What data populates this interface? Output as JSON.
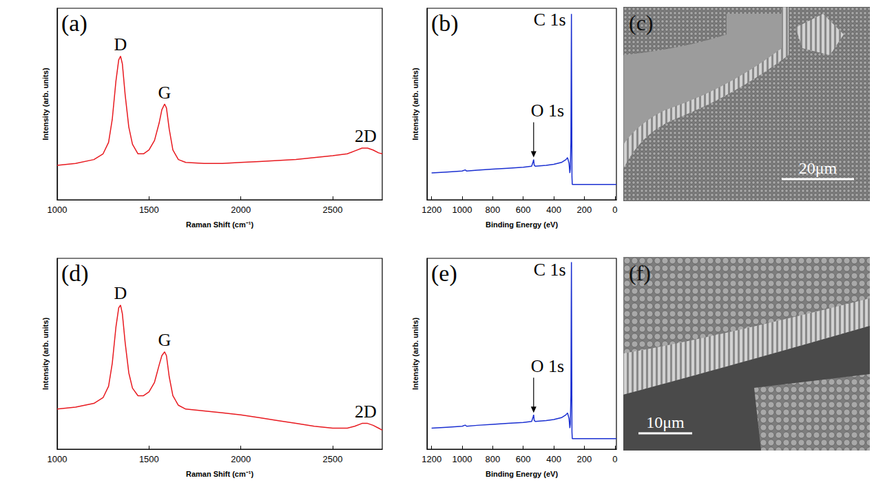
{
  "chart_data": [
    {
      "type": "line",
      "panel": "(a)",
      "x_label": "Raman Shift (cm⁻¹)",
      "y_label": "Intensity (arb. units)",
      "xlim": [
        1000,
        2770
      ],
      "xticks": [
        1000,
        1500,
        2000,
        2500
      ],
      "ylim": [
        0,
        100
      ],
      "tick_labels": "x",
      "color": "#e8191f",
      "x": [
        1000,
        1100,
        1200,
        1250,
        1280,
        1300,
        1320,
        1335,
        1345,
        1355,
        1370,
        1390,
        1410,
        1440,
        1470,
        1500,
        1530,
        1555,
        1570,
        1585,
        1595,
        1610,
        1630,
        1660,
        1700,
        1800,
        1900,
        2000,
        2100,
        2200,
        2300,
        2400,
        2500,
        2580,
        2620,
        2660,
        2690,
        2720,
        2750,
        2770
      ],
      "values": [
        18,
        19,
        21,
        24,
        30,
        42,
        62,
        73,
        75,
        71,
        55,
        38,
        29,
        24,
        24,
        26,
        31,
        40,
        47,
        50,
        48,
        37,
        26,
        21,
        19.5,
        19,
        19,
        19.5,
        20,
        20.5,
        21,
        22,
        23,
        24,
        25.5,
        27,
        27,
        26,
        24.5,
        24
      ],
      "annotations": [
        {
          "text": "D",
          "x": 1345,
          "y": 75
        },
        {
          "text": "G",
          "x": 1585,
          "y": 50
        },
        {
          "text": "2D",
          "x": 2680,
          "y": 27
        }
      ]
    },
    {
      "type": "line",
      "panel": "(b)",
      "x_label": "Binding Energy (eV)",
      "y_label": "Intensity (arb. units)",
      "xlim": [
        1230,
        -10
      ],
      "xticks": [
        1200,
        1000,
        800,
        600,
        400,
        200,
        0
      ],
      "ylim": [
        0,
        100
      ],
      "tick_labels": "x",
      "color": "#1a2fd1",
      "x": [
        1200,
        1100,
        1000,
        980,
        970,
        900,
        800,
        700,
        600,
        545,
        535,
        532,
        528,
        520,
        450,
        400,
        350,
        320,
        310,
        300,
        295,
        292,
        288,
        286,
        284.5,
        283,
        281,
        279,
        270,
        200,
        100,
        0,
        -10
      ],
      "values": [
        14,
        14.5,
        15,
        15.6,
        15,
        15.5,
        16,
        16.5,
        17,
        17.5,
        20,
        21,
        18,
        17.5,
        18,
        18.5,
        19.5,
        21,
        22,
        19,
        14,
        16,
        30,
        70,
        97,
        60,
        12,
        8,
        8,
        8,
        8,
        8,
        8
      ],
      "annotations": [
        {
          "text": "C 1s",
          "x": 284.5,
          "y": 97
        },
        {
          "text": "O 1s",
          "x": 532,
          "y": 21,
          "marker": "arrow"
        }
      ]
    },
    {
      "type": "image",
      "panel": "(c)",
      "scale_bar": "20μm"
    },
    {
      "type": "line",
      "panel": "(d)",
      "x_label": "Raman Shift (cm⁻¹)",
      "y_label": "Intensity (arb. units)",
      "xlim": [
        1000,
        2770
      ],
      "xticks": [
        1000,
        1500,
        2000,
        2500
      ],
      "ylim": [
        0,
        100
      ],
      "tick_labels": "x",
      "color": "#e8191f",
      "x": [
        1000,
        1100,
        1200,
        1250,
        1280,
        1300,
        1320,
        1335,
        1345,
        1355,
        1370,
        1390,
        1410,
        1440,
        1470,
        1500,
        1530,
        1555,
        1570,
        1585,
        1595,
        1610,
        1630,
        1660,
        1700,
        1800,
        1900,
        2000,
        2100,
        2200,
        2300,
        2400,
        2500,
        2580,
        2620,
        2660,
        2690,
        2720,
        2750,
        2770
      ],
      "values": [
        21,
        22,
        24,
        27,
        33,
        45,
        64,
        74,
        75.5,
        71,
        56,
        40,
        32,
        28,
        28,
        30,
        35,
        44,
        49,
        51,
        49,
        38,
        28,
        23,
        21,
        20,
        19,
        18,
        16.5,
        15,
        13.5,
        12,
        11,
        11,
        12,
        13.5,
        13.5,
        12.5,
        11,
        10
      ],
      "annotations": [
        {
          "text": "D",
          "x": 1345,
          "y": 75.5
        },
        {
          "text": "G",
          "x": 1585,
          "y": 51
        },
        {
          "text": "2D",
          "x": 2680,
          "y": 13.5
        }
      ]
    },
    {
      "type": "line",
      "panel": "(e)",
      "x_label": "Binding Energy (eV)",
      "y_label": "Intensity (arb. units)",
      "xlim": [
        1230,
        -10
      ],
      "xticks": [
        1200,
        1000,
        800,
        600,
        400,
        200,
        0
      ],
      "ylim": [
        0,
        100
      ],
      "tick_labels": "x",
      "color": "#1a2fd1",
      "x": [
        1200,
        1100,
        1000,
        980,
        970,
        900,
        800,
        700,
        600,
        545,
        535,
        532,
        528,
        520,
        450,
        400,
        350,
        320,
        310,
        300,
        295,
        292,
        288,
        286,
        284.5,
        283,
        281,
        279,
        270,
        200,
        100,
        0,
        -10
      ],
      "values": [
        11,
        11.5,
        12,
        12.6,
        12,
        12.5,
        13,
        13.5,
        14,
        14.5,
        17,
        18,
        15,
        14.5,
        15,
        15.5,
        16.5,
        18,
        19,
        16,
        11,
        13,
        28,
        72,
        98,
        58,
        9,
        5.5,
        5.5,
        5.5,
        5.5,
        5.5,
        5.5
      ],
      "annotations": [
        {
          "text": "C 1s",
          "x": 284.5,
          "y": 98
        },
        {
          "text": "O 1s",
          "x": 532,
          "y": 18,
          "marker": "arrow"
        }
      ]
    },
    {
      "type": "image",
      "panel": "(f)",
      "scale_bar": "10μm"
    }
  ]
}
